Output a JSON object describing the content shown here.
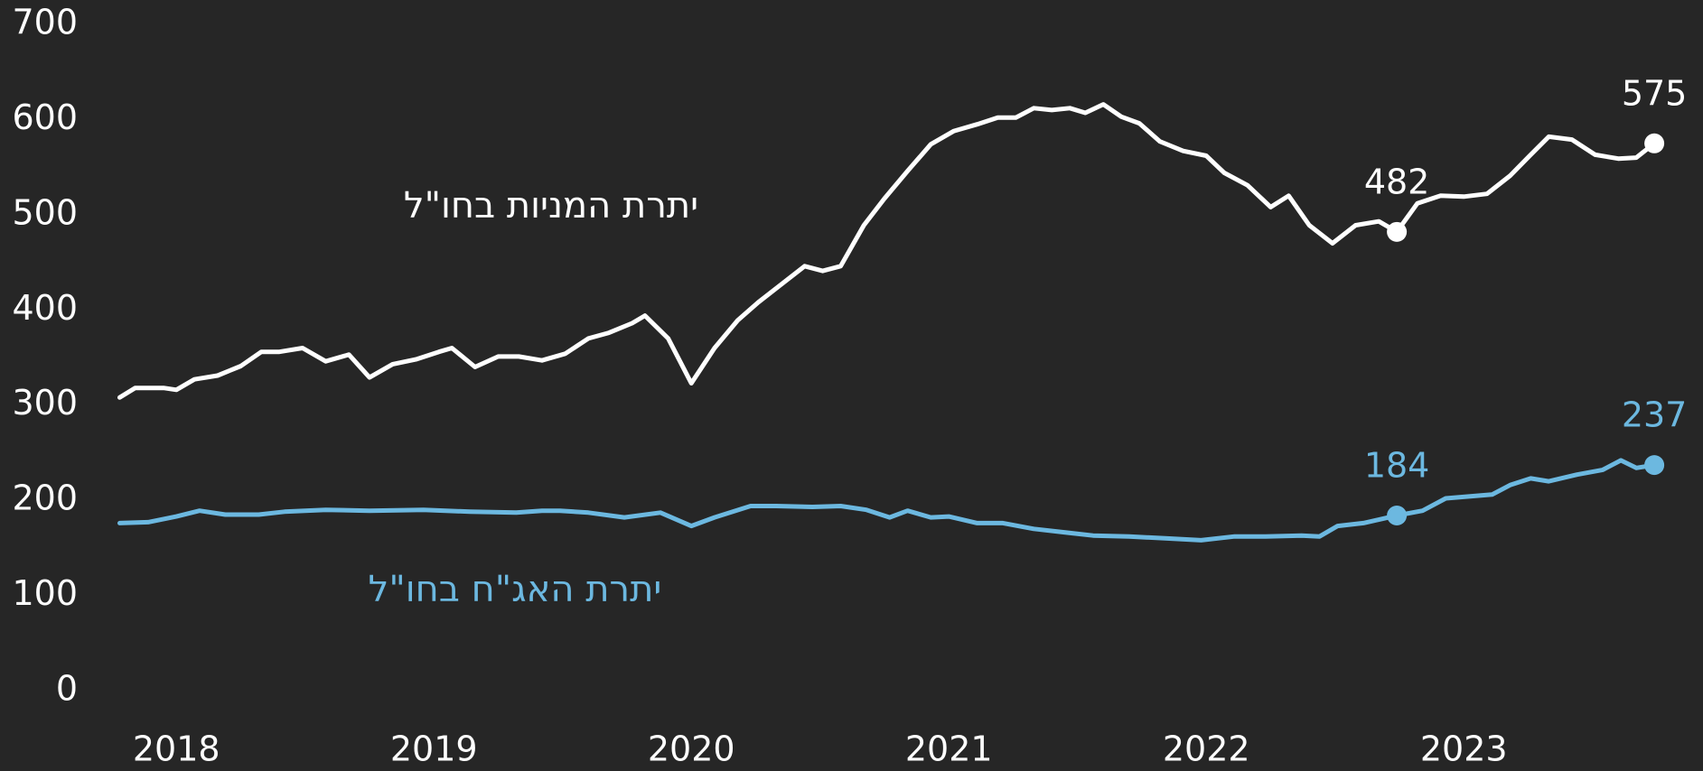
{
  "chart_data": {
    "type": "line",
    "xlim": [
      2017.75,
      2023.88
    ],
    "xticks": [
      2018,
      2019,
      2020,
      2021,
      2022,
      2023
    ],
    "ylim": [
      0,
      700
    ],
    "yticks": [
      0,
      100,
      200,
      300,
      400,
      500,
      600,
      700
    ],
    "grid": false,
    "background": "#262626",
    "series": [
      {
        "name": "יתרת המניות בחו\"ל",
        "color": "#ffffff",
        "x": [
          2017.78,
          2017.84,
          2017.95,
          2018.0,
          2018.07,
          2018.16,
          2018.25,
          2018.33,
          2018.4,
          2018.49,
          2018.58,
          2018.67,
          2018.75,
          2018.84,
          2018.93,
          2019.02,
          2019.07,
          2019.16,
          2019.25,
          2019.33,
          2019.42,
          2019.51,
          2019.6,
          2019.68,
          2019.77,
          2019.82,
          2019.91,
          2020.0,
          2020.09,
          2020.18,
          2020.26,
          2020.35,
          2020.44,
          2020.51,
          2020.58,
          2020.67,
          2020.75,
          2020.84,
          2020.93,
          2021.02,
          2021.11,
          2021.19,
          2021.26,
          2021.33,
          2021.4,
          2021.47,
          2021.53,
          2021.6,
          2021.67,
          2021.74,
          2021.82,
          2021.91,
          2022.0,
          2022.07,
          2022.16,
          2022.25,
          2022.32,
          2022.4,
          2022.49,
          2022.58,
          2022.67,
          2022.74,
          2022.82,
          2022.91,
          2023.0,
          2023.09,
          2023.18,
          2023.26,
          2023.33,
          2023.42,
          2023.51,
          2023.6,
          2023.67,
          2023.74
        ],
        "values": [
          308,
          318,
          318,
          316,
          327,
          331,
          341,
          356,
          356,
          360,
          346,
          353,
          329,
          343,
          348,
          356,
          360,
          340,
          351,
          351,
          347,
          354,
          370,
          376,
          386,
          394,
          370,
          323,
          360,
          389,
          408,
          427,
          446,
          441,
          446,
          489,
          517,
          546,
          574,
          588,
          595,
          602,
          602,
          612,
          610,
          612,
          607,
          616,
          603,
          596,
          577,
          567,
          562,
          544,
          531,
          508,
          520,
          489,
          470,
          489,
          493,
          482,
          512,
          520,
          519,
          522,
          541,
          563,
          582,
          579,
          563,
          559,
          560,
          575
        ],
        "labeled_points": [
          61,
          73
        ]
      },
      {
        "name": "יתרת האג\"ח בחו\"ל",
        "color": "#6cb8e0",
        "x": [
          2017.78,
          2017.89,
          2018.0,
          2018.09,
          2018.19,
          2018.32,
          2018.42,
          2018.58,
          2018.75,
          2018.96,
          2019.14,
          2019.32,
          2019.42,
          2019.49,
          2019.6,
          2019.74,
          2019.88,
          2020.0,
          2020.09,
          2020.23,
          2020.33,
          2020.47,
          2020.58,
          2020.68,
          2020.77,
          2020.84,
          2020.93,
          2021.0,
          2021.11,
          2021.21,
          2021.33,
          2021.46,
          2021.56,
          2021.7,
          2021.84,
          2021.98,
          2022.11,
          2022.23,
          2022.37,
          2022.44,
          2022.51,
          2022.61,
          2022.74,
          2022.84,
          2022.93,
          2023.02,
          2023.11,
          2023.18,
          2023.26,
          2023.33,
          2023.44,
          2023.54,
          2023.61,
          2023.67,
          2023.74
        ],
        "values": [
          176,
          177,
          183,
          189,
          185,
          185,
          188,
          190,
          189,
          190,
          188,
          187,
          189,
          189,
          187,
          182,
          187,
          173,
          182,
          194,
          194,
          193,
          194,
          190,
          182,
          189,
          182,
          183,
          176,
          176,
          170,
          166,
          163,
          162,
          160,
          158,
          162,
          162,
          163,
          162,
          173,
          176,
          184,
          189,
          202,
          204,
          206,
          216,
          223,
          220,
          227,
          232,
          242,
          234,
          237
        ],
        "labeled_points": [
          42,
          54
        ]
      }
    ]
  }
}
